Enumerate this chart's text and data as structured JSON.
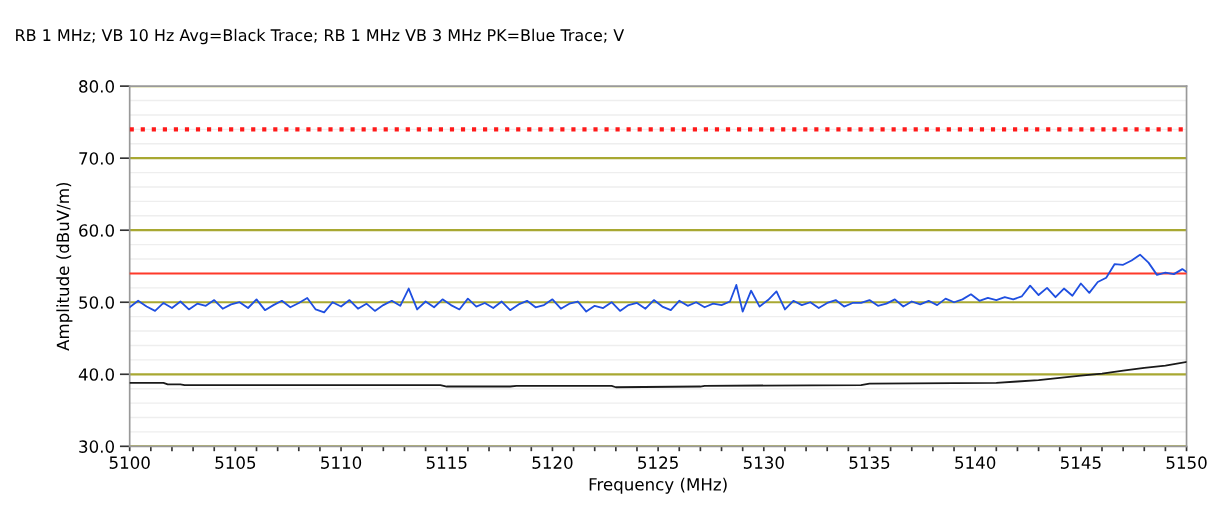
{
  "chart_data": {
    "type": "line",
    "title": "RB 1 MHz; VB 10 Hz Avg=Black Trace; RB 1 MHz VB 3 MHz PK=Blue Trace; V",
    "xlabel": "Frequency (MHz)",
    "ylabel": "Amplitude (dBuV/m)",
    "xlim": [
      5100,
      5150
    ],
    "ylim": [
      30,
      80
    ],
    "xticks": [
      5100,
      {
        "value": 5101,
        "label": null
      },
      {
        "value": 5102,
        "label": null
      },
      {
        "value": 5103,
        "label": null
      },
      {
        "value": 5104,
        "label": null
      },
      5105,
      {
        "value": 5106,
        "label": null
      },
      {
        "value": 5107,
        "label": null
      },
      {
        "value": 5108,
        "label": null
      },
      {
        "value": 5109,
        "label": null
      },
      5110,
      {
        "value": 5111,
        "label": null
      },
      {
        "value": 5112,
        "label": null
      },
      {
        "value": 5113,
        "label": null
      },
      {
        "value": 5114,
        "label": null
      },
      5115,
      {
        "value": 5116,
        "label": null
      },
      {
        "value": 5117,
        "label": null
      },
      {
        "value": 5118,
        "label": null
      },
      {
        "value": 5119,
        "label": null
      },
      5120,
      {
        "value": 5121,
        "label": null
      },
      {
        "value": 5122,
        "label": null
      },
      {
        "value": 5123,
        "label": null
      },
      {
        "value": 5124,
        "label": null
      },
      5125,
      {
        "value": 5126,
        "label": null
      },
      {
        "value": 5127,
        "label": null
      },
      {
        "value": 5128,
        "label": null
      },
      {
        "value": 5129,
        "label": null
      },
      5130,
      {
        "value": 5131,
        "label": null
      },
      {
        "value": 5132,
        "label": null
      },
      {
        "value": 5133,
        "label": null
      },
      {
        "value": 5134,
        "label": null
      },
      5135,
      {
        "value": 5136,
        "label": null
      },
      {
        "value": 5137,
        "label": null
      },
      {
        "value": 5138,
        "label": null
      },
      {
        "value": 5139,
        "label": null
      },
      5140,
      {
        "value": 5141,
        "label": null
      },
      {
        "value": 5142,
        "label": null
      },
      {
        "value": 5143,
        "label": null
      },
      {
        "value": 5144,
        "label": null
      },
      5145,
      {
        "value": 5146,
        "label": null
      },
      {
        "value": 5147,
        "label": null
      },
      {
        "value": 5148,
        "label": null
      },
      {
        "value": 5149,
        "label": null
      },
      5150
    ],
    "yticks": [
      {
        "value": 30,
        "label": "30.0"
      },
      {
        "value": 40,
        "label": "40.0"
      },
      {
        "value": 50,
        "label": "50.0"
      },
      {
        "value": 60,
        "label": "60.0"
      },
      {
        "value": 70,
        "label": "70.0"
      },
      {
        "value": 80,
        "label": "80.0"
      }
    ],
    "grid": "y",
    "legend": false,
    "line_style": "solid",
    "marker": "none",
    "ref_lines": [
      {
        "axis": "y",
        "value": 74,
        "label": null,
        "color": "#ff1a1a",
        "line_style": "dotted"
      },
      {
        "axis": "y",
        "value": 54,
        "label": null,
        "color": "#ff3a2a",
        "line_style": "solid"
      }
    ],
    "series": [
      {
        "color": "#1f4fe0",
        "x": [
          5100,
          5100.4,
          5100.8,
          5101.2,
          5101.6,
          5102,
          5102.4,
          5102.8,
          5103.2,
          5103.6,
          5104,
          5104.4,
          5104.8,
          5105.2,
          5105.6,
          5106,
          5106.4,
          5106.8,
          5107.2,
          5107.6,
          5108,
          5108.4,
          5108.8,
          5109.2,
          5109.6,
          5110,
          5110.4,
          5110.8,
          5111.2,
          5111.6,
          5112,
          5112.4,
          5112.8,
          5113.2,
          5113.6,
          5114,
          5114.4,
          5114.8,
          5115.2,
          5115.6,
          5116,
          5116.4,
          5116.8,
          5117.2,
          5117.6,
          5118,
          5118.4,
          5118.8,
          5119.2,
          5119.6,
          5120,
          5120.4,
          5120.8,
          5121.2,
          5121.6,
          5122,
          5122.4,
          5122.8,
          5123.2,
          5123.6,
          5124,
          5124.4,
          5124.8,
          5125.2,
          5125.6,
          5126,
          5126.4,
          5126.8,
          5127.2,
          5127.6,
          5128,
          5128.4,
          5128.7,
          5129,
          5129.4,
          5129.8,
          5130.2,
          5130.6,
          5131,
          5131.4,
          5131.8,
          5132.2,
          5132.6,
          5133,
          5133.4,
          5133.8,
          5134.2,
          5134.6,
          5135,
          5135.4,
          5135.8,
          5136.2,
          5136.6,
          5137,
          5137.4,
          5137.8,
          5138.2,
          5138.6,
          5139,
          5139.4,
          5139.8,
          5140.2,
          5140.6,
          5141,
          5141.4,
          5141.8,
          5142.2,
          5142.6,
          5143,
          5143.4,
          5143.8,
          5144.2,
          5144.6,
          5145,
          5145.4,
          5145.8,
          5146.2,
          5146.6,
          5147,
          5147.4,
          5147.8,
          5148.2,
          5148.6,
          5149,
          5149.4,
          5149.8,
          5150
        ],
        "values": [
          49.3,
          50.2,
          49.4,
          48.8,
          49.9,
          49.2,
          50.1,
          49.0,
          49.8,
          49.5,
          50.3,
          49.1,
          49.7,
          50.0,
          49.2,
          50.4,
          48.9,
          49.6,
          50.2,
          49.3,
          49.9,
          50.6,
          49.0,
          48.6,
          50.0,
          49.4,
          50.3,
          49.1,
          49.8,
          48.8,
          49.6,
          50.2,
          49.5,
          51.9,
          49.0,
          50.1,
          49.3,
          50.4,
          49.6,
          49.0,
          50.5,
          49.4,
          49.9,
          49.2,
          50.1,
          48.9,
          49.7,
          50.2,
          49.3,
          49.6,
          50.4,
          49.1,
          49.8,
          50.1,
          48.7,
          49.5,
          49.2,
          50.0,
          48.8,
          49.6,
          49.9,
          49.1,
          50.3,
          49.4,
          48.9,
          50.2,
          49.5,
          50.0,
          49.3,
          49.8,
          49.6,
          50.1,
          52.4,
          48.7,
          51.6,
          49.4,
          50.3,
          51.5,
          49.0,
          50.2,
          49.6,
          50.0,
          49.2,
          49.9,
          50.3,
          49.4,
          49.9,
          49.9,
          50.3,
          49.5,
          49.8,
          50.4,
          49.4,
          50.1,
          49.7,
          50.2,
          49.6,
          50.5,
          50.0,
          50.4,
          51.1,
          50.2,
          50.6,
          50.3,
          50.7,
          50.4,
          50.8,
          52.3,
          51.0,
          52.0,
          50.7,
          51.9,
          50.9,
          52.6,
          51.3,
          52.8,
          53.4,
          55.3,
          55.2,
          55.8,
          56.6,
          55.5,
          53.8,
          54.1,
          53.9,
          54.6,
          54.2
        ]
      },
      {
        "color": "#1a1a1a",
        "x": [
          5100,
          5101.6,
          5101.8,
          5102.4,
          5102.6,
          5114.7,
          5115,
          5118,
          5118.3,
          5122.8,
          5123,
          5127,
          5127.2,
          5134.6,
          5135,
          5141,
          5142,
          5143,
          5144,
          5145,
          5146,
          5147,
          5148,
          5149,
          5150
        ],
        "values": [
          38.8,
          38.8,
          38.6,
          38.6,
          38.5,
          38.5,
          38.3,
          38.3,
          38.4,
          38.4,
          38.2,
          38.3,
          38.4,
          38.5,
          38.7,
          38.8,
          39.0,
          39.2,
          39.5,
          39.8,
          40.1,
          40.5,
          40.9,
          41.2,
          41.7
        ]
      }
    ]
  }
}
